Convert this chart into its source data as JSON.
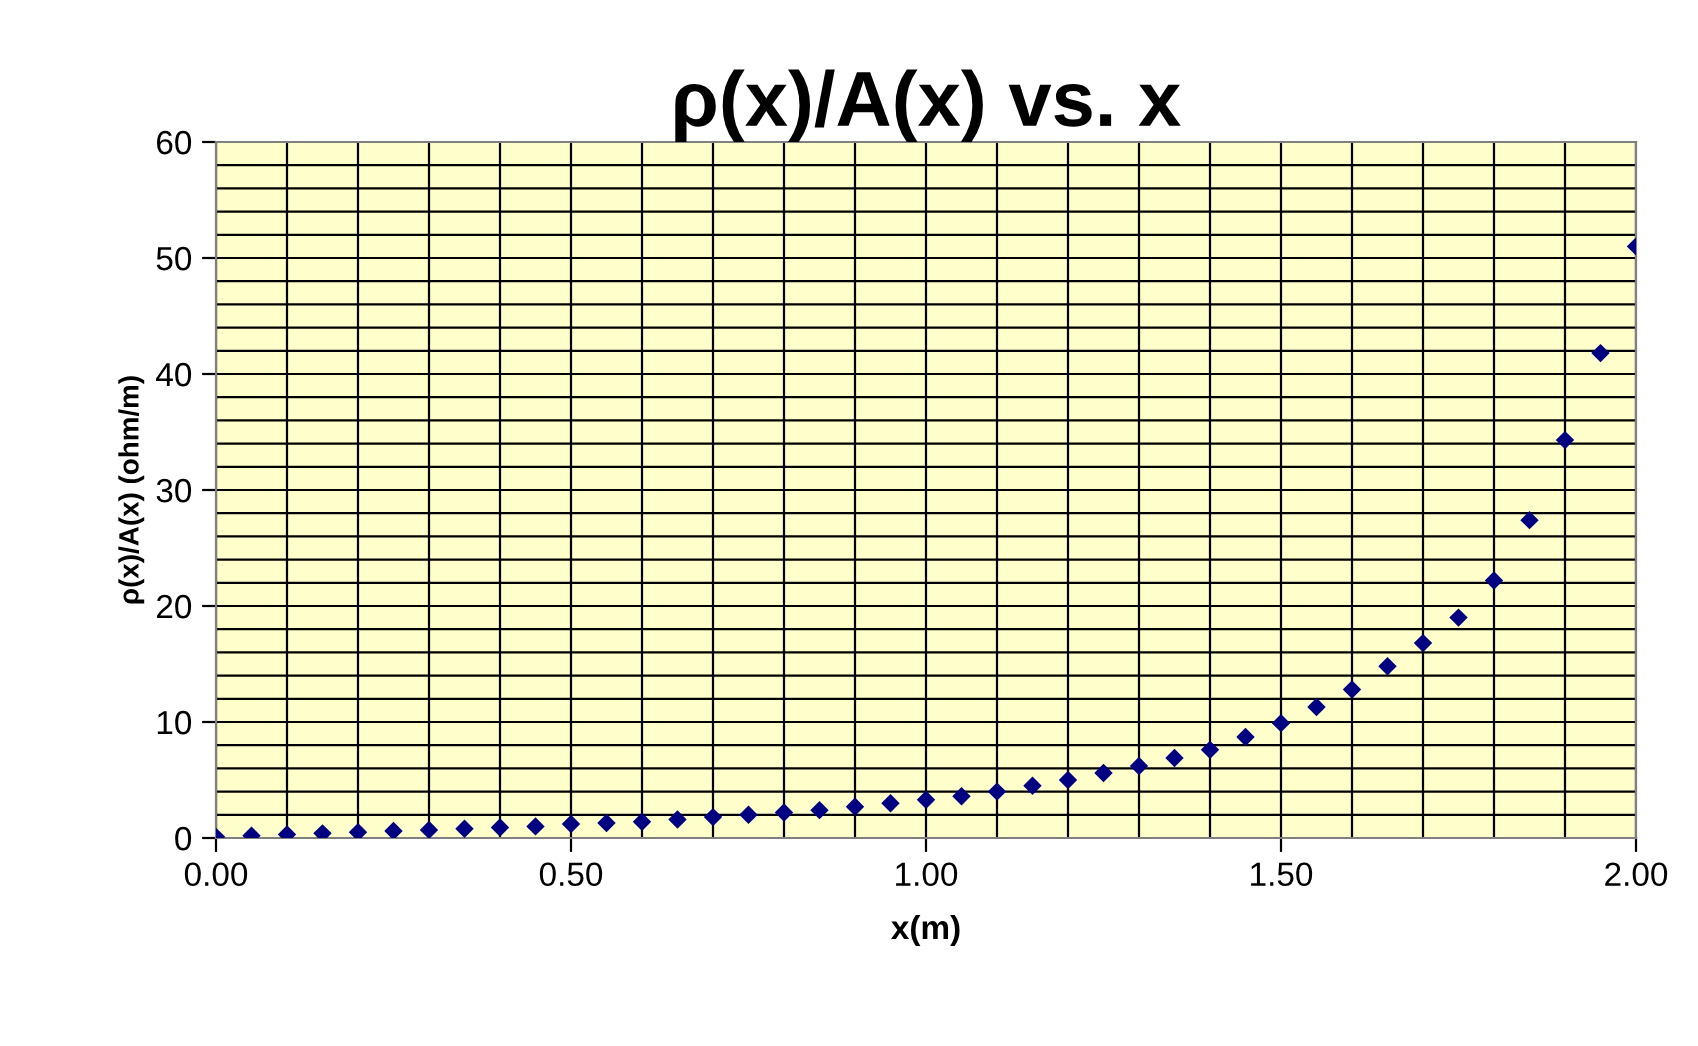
{
  "chart_data": {
    "type": "scatter",
    "title": "ρ(x)/A(x) vs. x",
    "xlabel": "x(m)",
    "ylabel": "ρ(x)/A(x) (ohm/m)",
    "x": [
      0,
      0.05,
      0.1,
      0.15,
      0.2,
      0.25,
      0.3,
      0.35,
      0.4,
      0.45,
      0.5,
      0.55,
      0.6,
      0.65,
      0.7,
      0.75,
      0.8,
      0.85,
      0.9,
      0.95,
      1.0,
      1.05,
      1.1,
      1.15,
      1.2,
      1.25,
      1.3,
      1.35,
      1.4,
      1.45,
      1.5,
      1.55,
      1.6,
      1.65,
      1.7,
      1.75,
      1.8,
      1.85,
      1.9,
      1.95,
      2.0
    ],
    "series": [
      {
        "color": "#000080",
        "values": [
          0.1,
          0.2,
          0.3,
          0.4,
          0.5,
          0.6,
          0.7,
          0.8,
          0.9,
          1.0,
          1.2,
          1.3,
          1.4,
          1.6,
          1.8,
          2.0,
          2.2,
          2.4,
          2.7,
          3.0,
          3.3,
          3.6,
          4.0,
          4.5,
          5.0,
          5.6,
          6.2,
          6.9,
          7.6,
          8.7,
          9.9,
          11.3,
          12.8,
          14.8,
          16.8,
          19.0,
          22.2,
          27.4,
          34.3,
          41.8,
          51
        ]
      }
    ],
    "marker": "diamond",
    "grid": true,
    "xlim": [
      0,
      2
    ],
    "ylim": [
      0,
      60
    ],
    "xticks": [
      {
        "value": 0,
        "label": "0.00"
      },
      {
        "value": 0.1,
        "label": null
      },
      {
        "value": 0.2,
        "label": null
      },
      {
        "value": 0.3,
        "label": null
      },
      {
        "value": 0.4,
        "label": null
      },
      {
        "value": 0.5,
        "label": "0.50"
      },
      {
        "value": 0.6,
        "label": null
      },
      {
        "value": 0.7,
        "label": null
      },
      {
        "value": 0.8,
        "label": null
      },
      {
        "value": 0.9,
        "label": null
      },
      {
        "value": 1.0,
        "label": "1.00"
      },
      {
        "value": 1.1,
        "label": null
      },
      {
        "value": 1.2,
        "label": null
      },
      {
        "value": 1.3,
        "label": null
      },
      {
        "value": 1.4,
        "label": null
      },
      {
        "value": 1.5,
        "label": "1.50"
      },
      {
        "value": 1.6,
        "label": null
      },
      {
        "value": 1.7,
        "label": null
      },
      {
        "value": 1.8,
        "label": null
      },
      {
        "value": 1.9,
        "label": null
      },
      {
        "value": 2.0,
        "label": "2.00"
      }
    ],
    "yticks": [
      0,
      {
        "value": 2,
        "label": null
      },
      {
        "value": 4,
        "label": null
      },
      {
        "value": 6,
        "label": null
      },
      {
        "value": 8,
        "label": null
      },
      10,
      {
        "value": 12,
        "label": null
      },
      {
        "value": 14,
        "label": null
      },
      {
        "value": 16,
        "label": null
      },
      {
        "value": 18,
        "label": null
      },
      20,
      {
        "value": 22,
        "label": null
      },
      {
        "value": 24,
        "label": null
      },
      {
        "value": 26,
        "label": null
      },
      {
        "value": 28,
        "label": null
      },
      30,
      {
        "value": 32,
        "label": null
      },
      {
        "value": 34,
        "label": null
      },
      {
        "value": 36,
        "label": null
      },
      {
        "value": 38,
        "label": null
      },
      40,
      {
        "value": 42,
        "label": null
      },
      {
        "value": 44,
        "label": null
      },
      {
        "value": 46,
        "label": null
      },
      {
        "value": 48,
        "label": null
      },
      50,
      {
        "value": 52,
        "label": null
      },
      {
        "value": 54,
        "label": null
      },
      {
        "value": 56,
        "label": null
      },
      {
        "value": 58,
        "label": null
      },
      60
    ]
  }
}
